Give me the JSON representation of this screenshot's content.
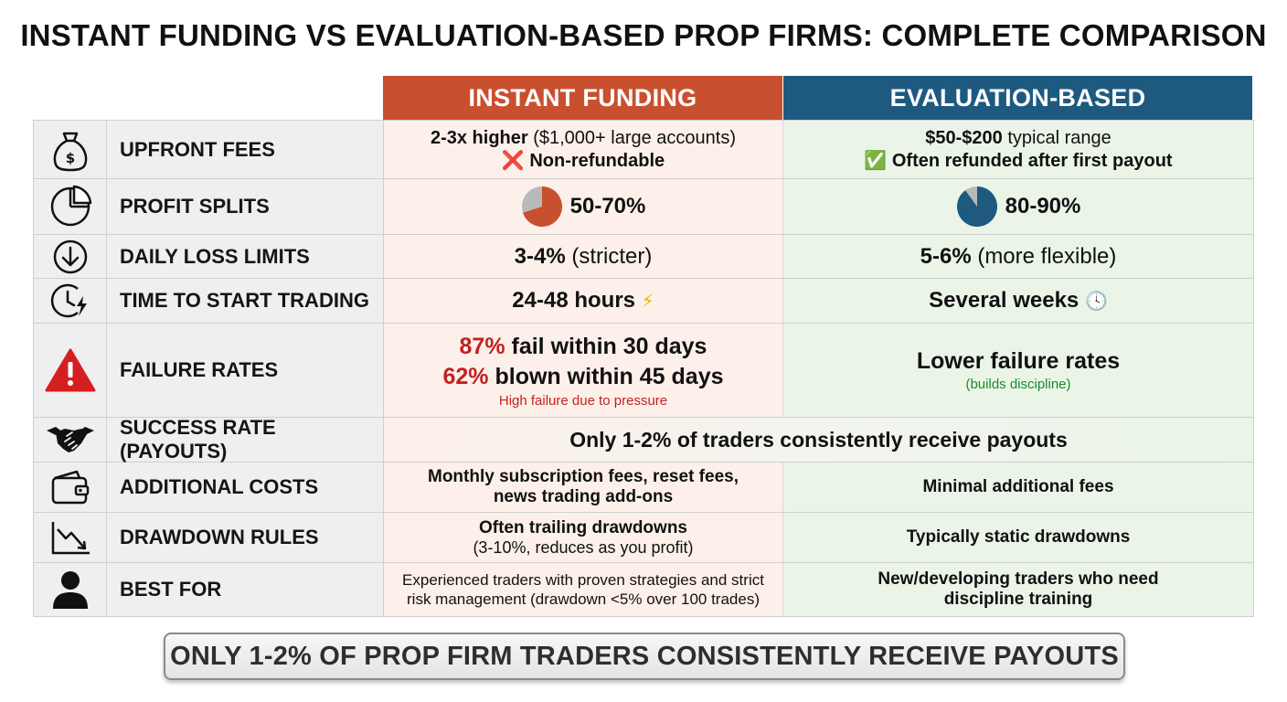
{
  "title": "INSTANT FUNDING VS EVALUATION-BASED PROP FIRMS: COMPLETE COMPARISON",
  "columns": {
    "instant": "INSTANT FUNDING",
    "evaluation": "EVALUATION-BASED"
  },
  "colors": {
    "instant_header": "#c9502f",
    "evaluation_header": "#1e5a80",
    "instant_bg": "#fdf0ea",
    "evaluation_bg": "#eaf5e8",
    "alert_red": "#c42020",
    "accent_green": "#1c8a2a"
  },
  "rows": {
    "upfront": {
      "icon": "money-bag-icon",
      "label": "UPFRONT FEES",
      "instant_bold": "2-3x higher",
      "instant_rest": " ($1,000+ large accounts)",
      "instant_line2": "Non-refundable",
      "instant_line2_icon": "❌",
      "eval_bold": "$50-$200",
      "eval_rest": " typical range",
      "eval_line2": "Often refunded after first payout",
      "eval_line2_icon": "✅"
    },
    "splits": {
      "icon": "pie-chart-icon",
      "label": "PROFIT SPLITS",
      "instant": "50-70%",
      "evaluation": "80-90%",
      "instant_pie_fraction": 0.7,
      "evaluation_pie_fraction": 0.9
    },
    "daily": {
      "icon": "arrow-down-circle-icon",
      "label": "DAILY LOSS LIMITS",
      "instant_bold": "3-4%",
      "instant_rest": " (stricter)",
      "eval_bold": "5-6%",
      "eval_rest": " (more flexible)"
    },
    "time": {
      "icon": "clock-lightning-icon",
      "label": "TIME TO START TRADING",
      "instant": "24-48 hours",
      "instant_emoji": "⚡",
      "evaluation": "Several weeks",
      "evaluation_emoji": "🕓"
    },
    "failure": {
      "icon": "warning-icon",
      "label": "FAILURE RATES",
      "instant_line1_pct": "87%",
      "instant_line1_rest": " fail within 30 days",
      "instant_line2_pct": "62%",
      "instant_line2_rest": " blown within 45 days",
      "instant_note": "High failure due to pressure",
      "evaluation": "Lower failure rates",
      "evaluation_note": "(builds discipline)"
    },
    "success": {
      "icon": "handshake-icon",
      "label": "SUCCESS RATE (PAYOUTS)",
      "merged": "Only 1-2% of traders consistently receive payouts"
    },
    "additional": {
      "icon": "wallet-icon",
      "label": "ADDITIONAL COSTS",
      "instant_line1": "Monthly subscription fees, reset fees,",
      "instant_line2": "news trading add-ons",
      "evaluation": "Minimal additional fees"
    },
    "drawdown": {
      "icon": "trend-down-icon",
      "label": "DRAWDOWN RULES",
      "instant_line1": "Often trailing drawdowns",
      "instant_line2": "(3-10%, reduces as you profit)",
      "evaluation": "Typically static drawdowns"
    },
    "best": {
      "icon": "user-icon",
      "label": "BEST FOR",
      "instant_line1": "Experienced traders with proven strategies and strict",
      "instant_line2": "risk management (drawdown <5% over 100 trades)",
      "eval_line1": "New/developing traders who need",
      "eval_line2": "discipline training"
    }
  },
  "footer": "ONLY 1-2% OF PROP FIRM TRADERS CONSISTENTLY RECEIVE PAYOUTS"
}
